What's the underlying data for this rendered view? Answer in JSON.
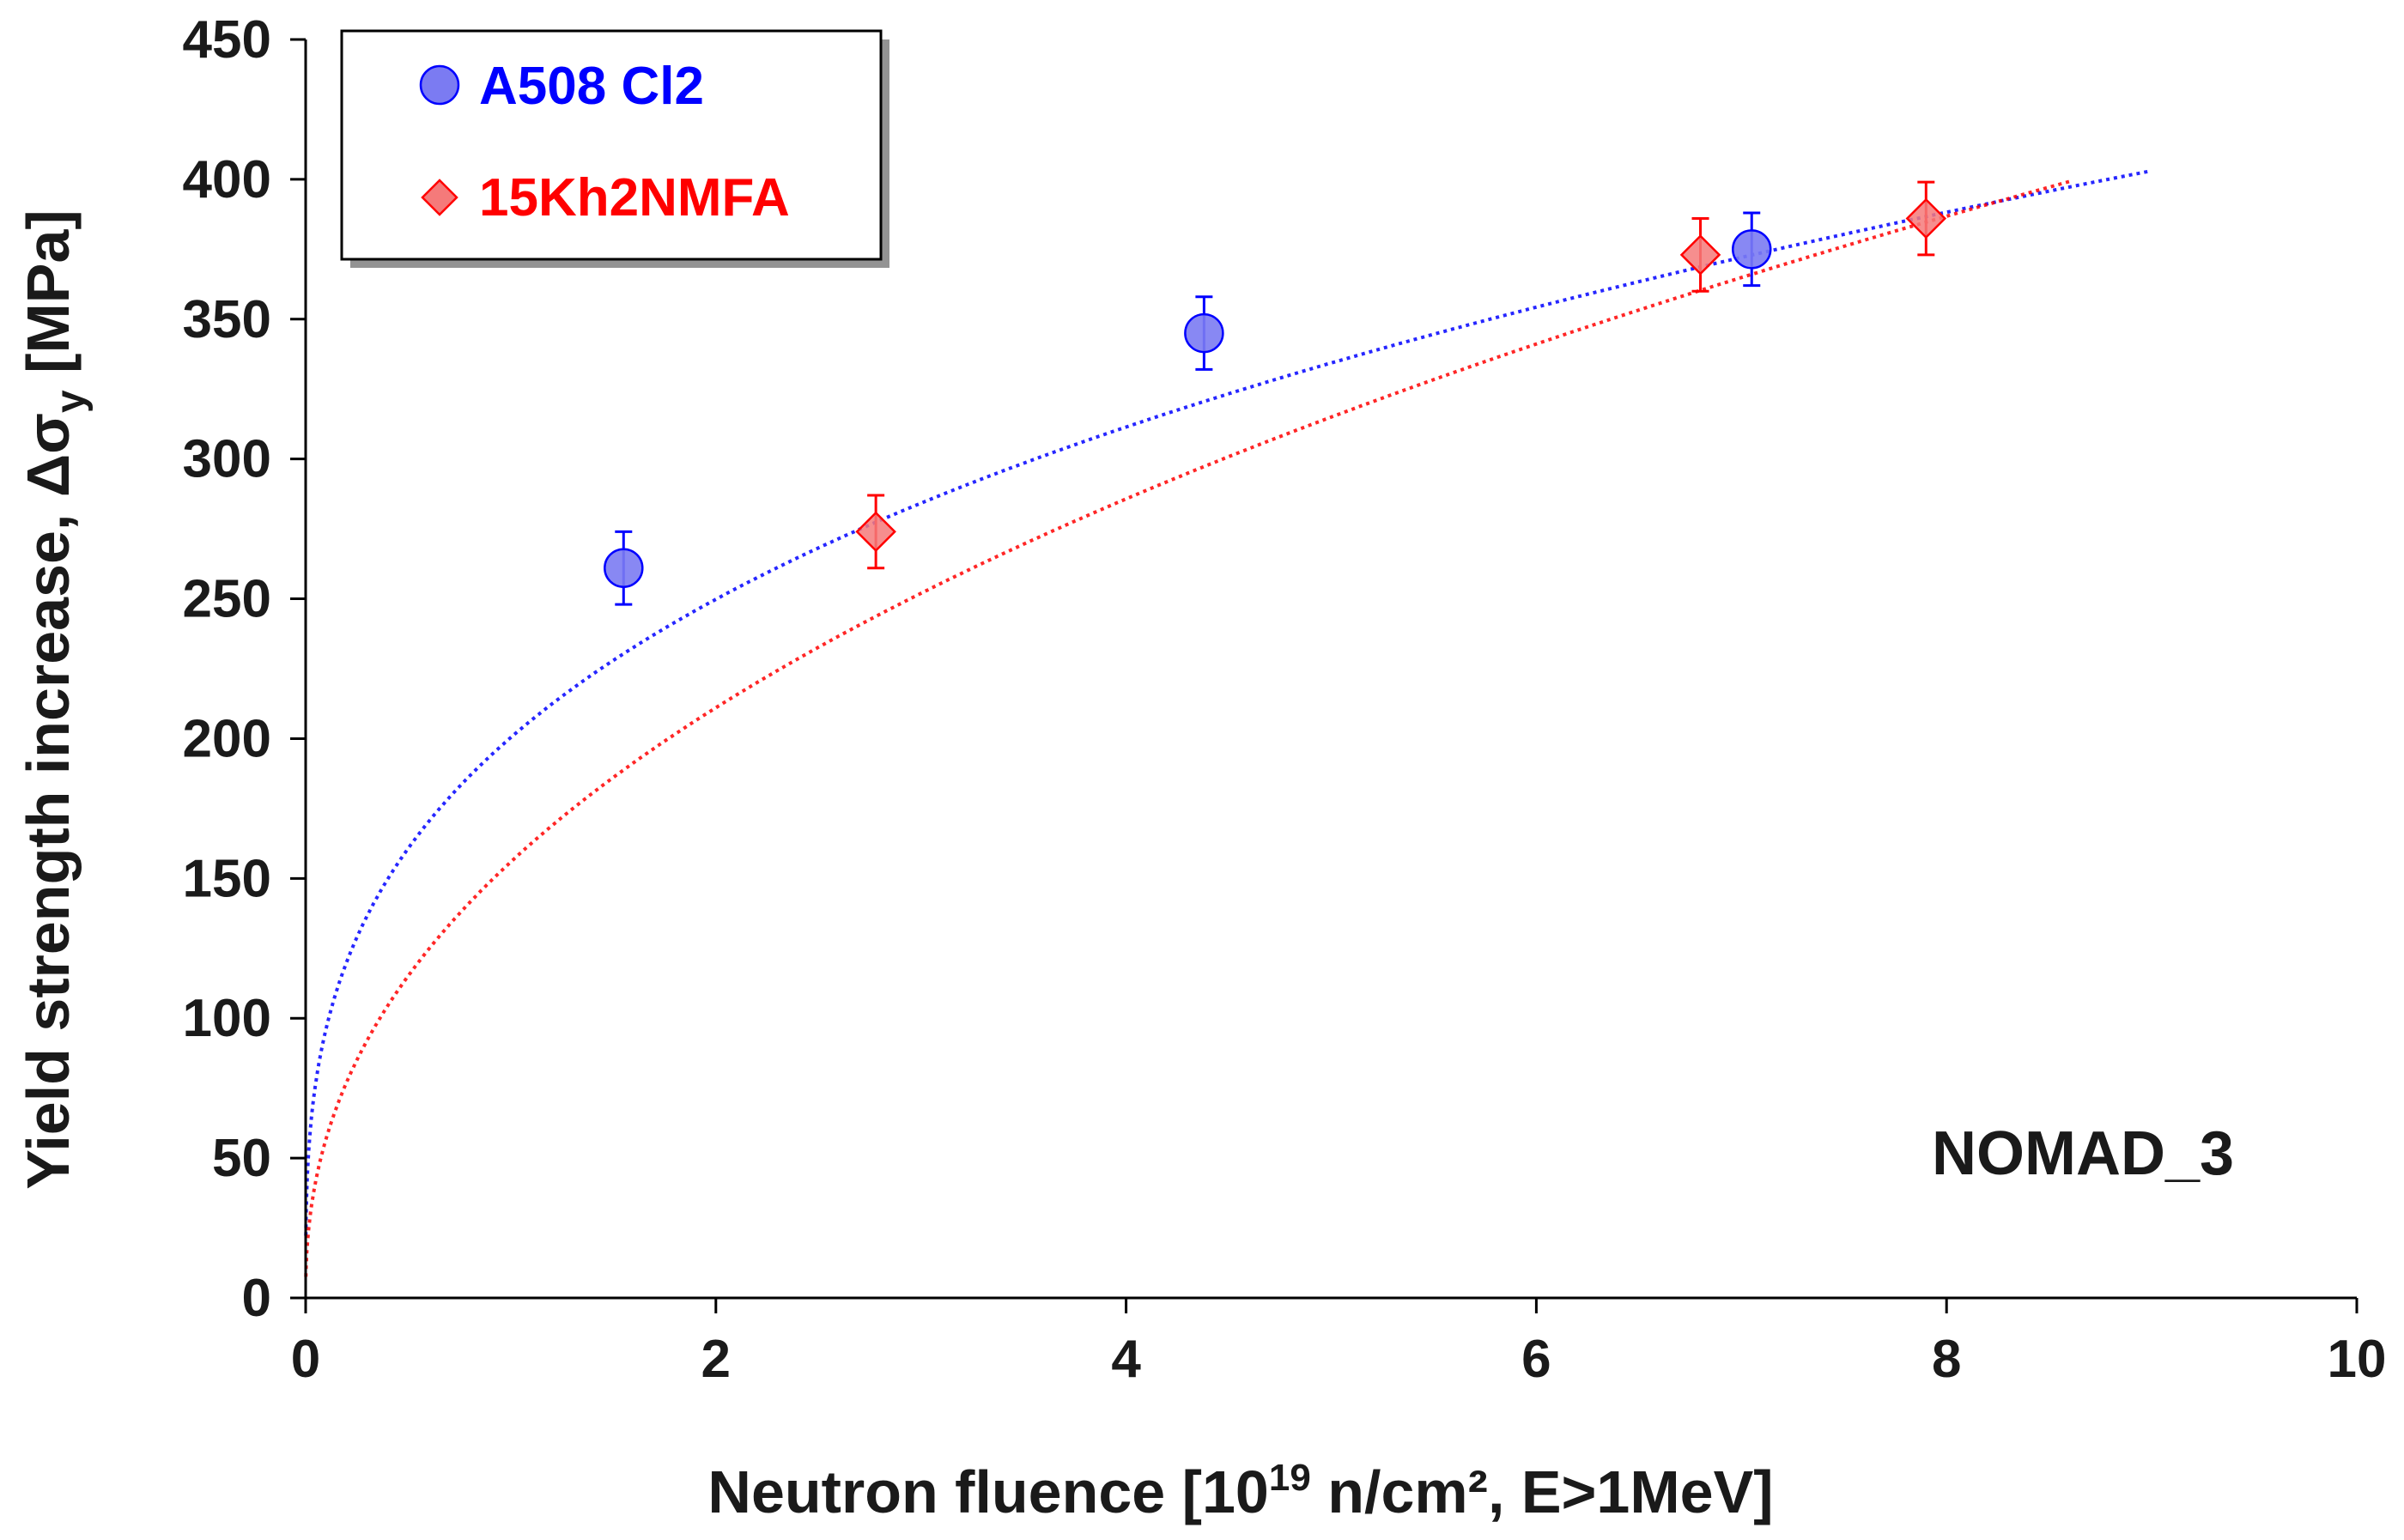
{
  "chart_data": {
    "type": "scatter",
    "xlabel_main": "Neutron fluence [10",
    "xlabel_exp": "19",
    "xlabel_rest": " n/cm², E>1MeV]",
    "ylabel_main": "Yield strength increase, Δσ",
    "ylabel_sub": "y",
    "ylabel_unit": " [MPa]",
    "xlim": [
      0,
      10
    ],
    "ylim": [
      0,
      450
    ],
    "xticks": [
      0,
      2,
      4,
      6,
      8,
      10
    ],
    "yticks": [
      0,
      50,
      100,
      150,
      200,
      250,
      300,
      350,
      400,
      450
    ],
    "annotation": "NOMAD_3",
    "legend_position": "top-left",
    "series": [
      {
        "name": "A508 Cl2",
        "marker": "circle",
        "color": "#0000ff",
        "fill": "#7b7bf2",
        "x": [
          1.55,
          4.38,
          7.05
        ],
        "y": [
          261,
          345,
          375
        ],
        "yerr": [
          13,
          13,
          13
        ],
        "trend": {
          "type": "power",
          "a": 200.4,
          "b": 0.318,
          "x_range": [
            0.001,
            9.0
          ]
        }
      },
      {
        "name": "15Kh2NMFA",
        "marker": "diamond",
        "color": "#ff0000",
        "fill": "#f57a7a",
        "x": [
          2.78,
          6.8,
          7.9
        ],
        "y": [
          274,
          373,
          386
        ],
        "yerr": [
          13,
          13,
          13
        ],
        "trend": {
          "type": "power",
          "a": 155.9,
          "b": 0.437,
          "x_range": [
            0.001,
            8.6
          ]
        }
      }
    ]
  }
}
